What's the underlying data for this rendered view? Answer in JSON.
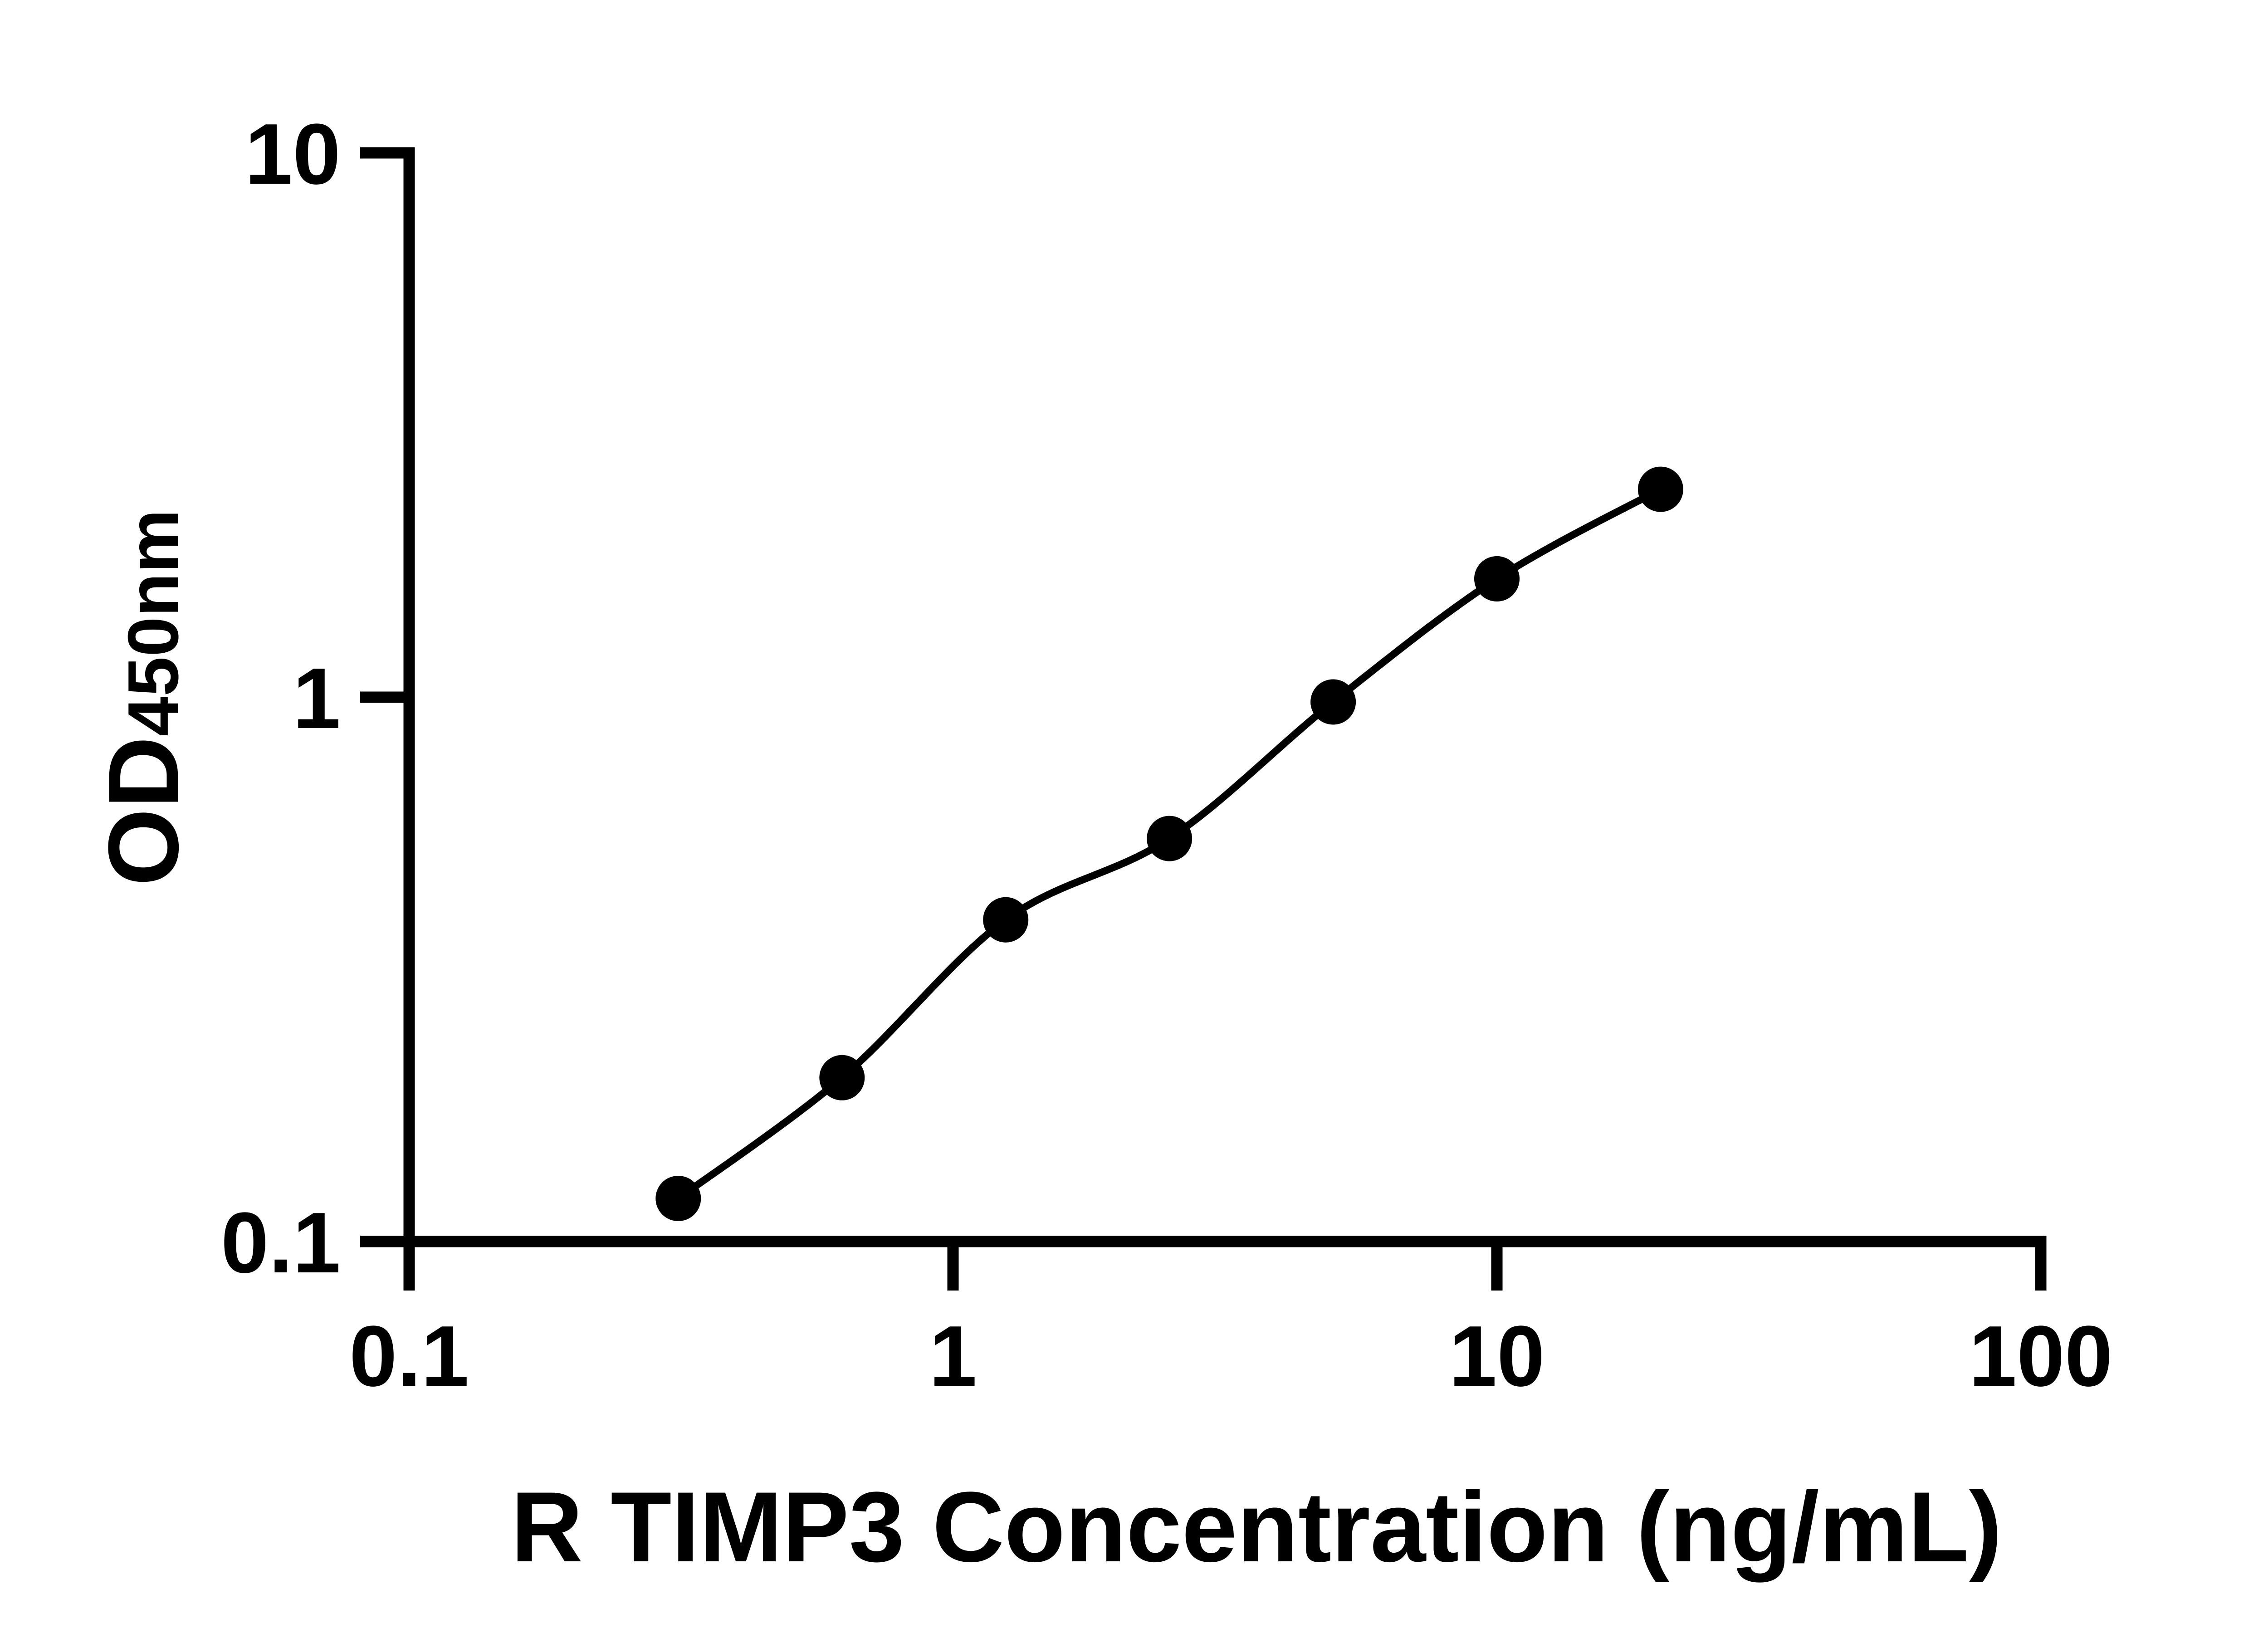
{
  "page": {
    "background": "#ffffff",
    "foreground": "#000000"
  },
  "chart_data": {
    "type": "scatter",
    "title": "",
    "x": [
      0.3125,
      0.625,
      1.25,
      2.5,
      5,
      10,
      20
    ],
    "y": [
      0.12,
      0.2,
      0.39,
      0.55,
      0.98,
      1.65,
      2.41
    ],
    "xlabel": "R TIMP3 Concentration (ng/mL)",
    "ylabel": "OD450nm",
    "ylabel_main": "OD",
    "ylabel_sub": "450nm",
    "x_scale": "log",
    "y_scale": "log",
    "xlim": [
      0.1,
      100
    ],
    "ylim": [
      0.1,
      10
    ],
    "x_ticks": [
      "0.1",
      "1",
      "10",
      "100"
    ],
    "y_ticks": [
      "10",
      "1",
      "0.1"
    ],
    "grid": false,
    "legend": false,
    "line": "smooth",
    "marker": "circle",
    "marker_radius_px": 50,
    "marker_color": "#000000",
    "line_color": "#000000"
  }
}
